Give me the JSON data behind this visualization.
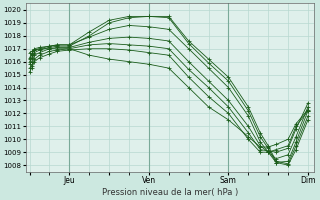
{
  "bg_color": "#cce8e0",
  "plot_bg_color": "#dff0eb",
  "grid_color": "#b8d8d0",
  "line_color": "#1a5c1a",
  "xlabel": "Pression niveau de la mer( hPa )",
  "ylim": [
    1007.5,
    1020.5
  ],
  "yticks": [
    1008,
    1009,
    1010,
    1011,
    1012,
    1013,
    1014,
    1015,
    1016,
    1017,
    1018,
    1019,
    1020
  ],
  "xtick_labels": [
    "",
    "Jeu",
    "",
    "Ven",
    "",
    "Sam",
    "",
    "Dim"
  ],
  "lines": [
    {
      "x": [
        0.0,
        0.05,
        0.12,
        0.25,
        0.5,
        0.7,
        1.0,
        1.5,
        2.0,
        2.5,
        3.0,
        3.5,
        4.0,
        4.5,
        5.0,
        5.5,
        5.8,
        6.0,
        6.2,
        6.5,
        6.7,
        7.0
      ],
      "y": [
        1016.0,
        1016.3,
        1016.7,
        1016.9,
        1017.1,
        1017.2,
        1017.2,
        1018.0,
        1019.0,
        1019.4,
        1019.5,
        1019.5,
        1017.6,
        1016.2,
        1014.8,
        1012.5,
        1010.5,
        1009.5,
        1008.3,
        1008.1,
        1009.5,
        1011.8
      ]
    },
    {
      "x": [
        0.0,
        0.05,
        0.12,
        0.25,
        0.5,
        0.7,
        1.0,
        1.5,
        2.0,
        2.5,
        3.0,
        3.5,
        4.0,
        4.5,
        5.0,
        5.5,
        5.8,
        6.0,
        6.2,
        6.5,
        6.7,
        7.0
      ],
      "y": [
        1016.2,
        1016.5,
        1016.9,
        1017.0,
        1017.2,
        1017.3,
        1017.3,
        1018.3,
        1019.2,
        1019.5,
        1019.5,
        1019.4,
        1017.4,
        1015.9,
        1014.5,
        1012.2,
        1010.2,
        1009.3,
        1008.2,
        1008.0,
        1009.2,
        1011.5
      ]
    },
    {
      "x": [
        0.0,
        0.05,
        0.12,
        0.25,
        0.5,
        0.7,
        1.0,
        1.5,
        2.0,
        2.5,
        3.0,
        3.5,
        4.0,
        4.5,
        5.0,
        5.5,
        5.8,
        6.0,
        6.2,
        6.5,
        6.7,
        7.0
      ],
      "y": [
        1016.3,
        1016.6,
        1017.0,
        1017.1,
        1017.2,
        1017.3,
        1017.3,
        1017.9,
        1018.5,
        1018.8,
        1018.7,
        1018.5,
        1017.0,
        1015.5,
        1014.0,
        1011.8,
        1009.8,
        1009.0,
        1008.2,
        1008.3,
        1009.8,
        1012.2
      ]
    },
    {
      "x": [
        0.0,
        0.05,
        0.12,
        0.25,
        0.5,
        0.7,
        1.0,
        1.5,
        2.0,
        2.5,
        3.0,
        3.5,
        4.0,
        4.5,
        5.0,
        5.5,
        5.8,
        6.0,
        6.2,
        6.5,
        6.7,
        7.0
      ],
      "y": [
        1015.8,
        1016.0,
        1016.5,
        1016.7,
        1017.0,
        1017.1,
        1017.1,
        1017.5,
        1017.8,
        1017.9,
        1017.8,
        1017.6,
        1016.0,
        1014.5,
        1013.0,
        1011.0,
        1009.5,
        1009.0,
        1008.5,
        1008.8,
        1010.2,
        1012.5
      ]
    },
    {
      "x": [
        0.0,
        0.05,
        0.12,
        0.25,
        0.5,
        0.7,
        1.0,
        1.5,
        2.0,
        2.5,
        3.0,
        3.5,
        4.0,
        4.5,
        5.0,
        5.5,
        5.8,
        6.0,
        6.2,
        6.5,
        6.7,
        7.0
      ],
      "y": [
        1015.5,
        1015.7,
        1016.2,
        1016.5,
        1016.8,
        1016.9,
        1017.0,
        1017.3,
        1017.4,
        1017.3,
        1017.2,
        1017.0,
        1015.4,
        1014.0,
        1012.5,
        1010.5,
        1009.2,
        1009.1,
        1009.0,
        1009.3,
        1010.8,
        1012.8
      ]
    },
    {
      "x": [
        0.0,
        0.05,
        0.12,
        0.25,
        0.5,
        0.7,
        1.0,
        1.5,
        2.0,
        2.5,
        3.0,
        3.5,
        4.0,
        4.5,
        5.0,
        5.5,
        5.8,
        6.0,
        6.2,
        6.5,
        6.7,
        7.0
      ],
      "y": [
        1015.2,
        1015.5,
        1016.0,
        1016.3,
        1016.6,
        1016.8,
        1016.9,
        1017.0,
        1017.0,
        1016.9,
        1016.7,
        1016.5,
        1014.8,
        1013.3,
        1012.0,
        1010.0,
        1009.0,
        1009.0,
        1009.2,
        1009.5,
        1011.0,
        1012.2
      ]
    },
    {
      "x": [
        0.0,
        0.05,
        0.12,
        0.25,
        0.5,
        0.7,
        1.0,
        1.5,
        2.0,
        2.5,
        3.0,
        3.5,
        4.0,
        4.5,
        5.0,
        5.5,
        5.8,
        6.0,
        6.2,
        6.5,
        6.7,
        7.0
      ],
      "y": [
        1016.7,
        1016.8,
        1016.9,
        1017.0,
        1017.0,
        1017.0,
        1017.0,
        1016.5,
        1016.2,
        1016.0,
        1015.8,
        1015.5,
        1014.0,
        1012.5,
        1011.5,
        1010.2,
        1009.4,
        1009.4,
        1009.6,
        1010.0,
        1011.2,
        1012.3
      ]
    }
  ]
}
